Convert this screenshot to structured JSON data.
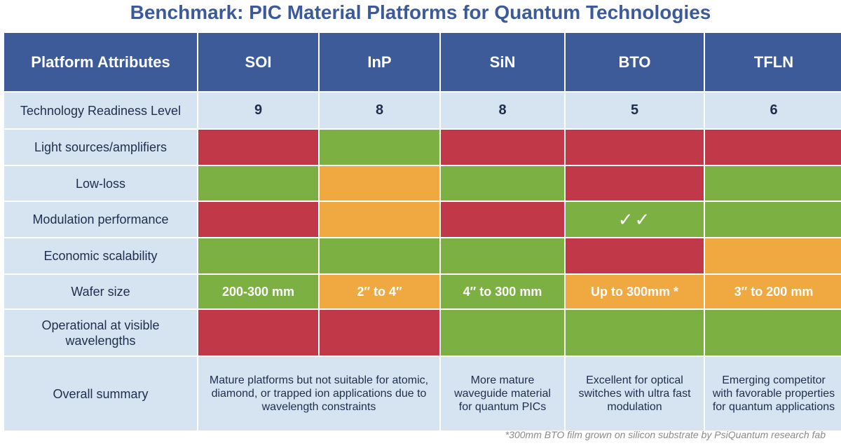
{
  "title": "Benchmark: PIC Material Platforms for Quantum Technologies",
  "colors": {
    "header": "#3d5a99",
    "label_bg": "#d6e4f1",
    "good": "#7cb043",
    "medium": "#f0a840",
    "poor": "#c13848",
    "title": "#3c5a9a"
  },
  "chart_data": {
    "type": "table",
    "title": "Benchmark: PIC Material Platforms for Quantum Technologies",
    "columns": [
      "Platform Attributes",
      "SOI",
      "InP",
      "SiN",
      "BTO",
      "TFLN"
    ],
    "rows": [
      {
        "label": "Technology Readiness Level",
        "values": [
          "9",
          "8",
          "8",
          "5",
          "6"
        ]
      },
      {
        "label": "Light sources/amplifiers",
        "ratings": [
          "poor",
          "good",
          "poor",
          "poor",
          "poor"
        ]
      },
      {
        "label": "Low-loss",
        "ratings": [
          "good",
          "medium",
          "good",
          "poor",
          "good"
        ]
      },
      {
        "label": "Modulation performance",
        "ratings": [
          "poor",
          "medium",
          "poor",
          "good",
          "good"
        ],
        "bto_mark": "✓✓"
      },
      {
        "label": "Economic scalability",
        "ratings": [
          "good",
          "good",
          "good",
          "poor",
          "medium"
        ]
      },
      {
        "label": "Wafer size",
        "ratings": [
          "good",
          "medium",
          "good",
          "medium",
          "medium"
        ],
        "values": [
          "200-300 mm",
          "2″ to 4″",
          "4″ to 300 mm",
          "Up to 300mm *",
          "3″ to 200 mm"
        ]
      },
      {
        "label": "Operational at visible wavelengths",
        "ratings": [
          "poor",
          "poor",
          "good",
          "good",
          "good"
        ]
      },
      {
        "label": "Overall summary",
        "summaries": [
          "Mature platforms but not suitable for atomic, diamond, or trapped ion applications due to wavelength constraints",
          "More mature waveguide material for quantum PICs",
          "Excellent for optical switches with ultra fast modulation",
          "Emerging competitor with favorable properties for quantum applications"
        ]
      }
    ],
    "footnote": "*300mm BTO film grown on silicon substrate by PsiQuantum research fab"
  }
}
